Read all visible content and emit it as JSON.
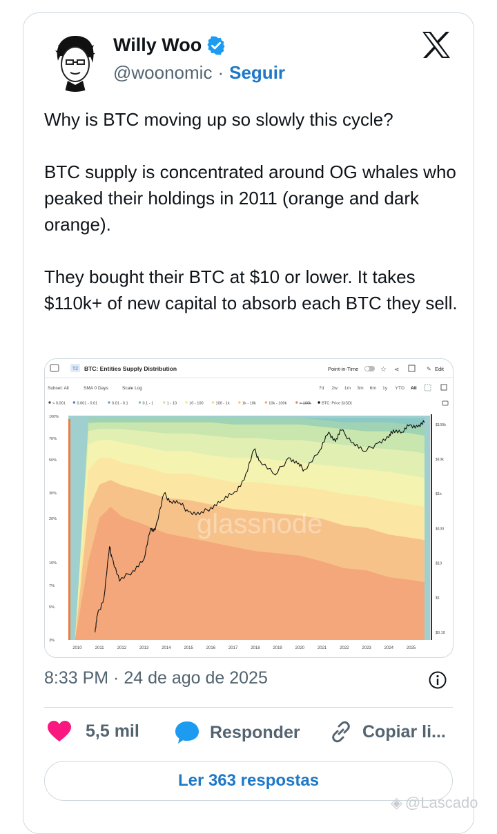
{
  "tweet": {
    "author_name": "Willy Woo",
    "handle": "@woonomic",
    "separator": "·",
    "follow_label": "Seguir",
    "paragraphs": [
      "Why is BTC moving up so slowly this cycle?",
      "BTC supply is concentrated around OG whales who peaked their holdings in 2011 (orange and dark orange).",
      "They bought their BTC at $10 or lower. It takes $110k+ of new capital to absorb each BTC they sell."
    ],
    "timestamp": "8:33 PM · 24 de ago de 2025",
    "likes": "5,5 mil",
    "reply_label": "Responder",
    "copy_label": "Copiar li...",
    "read_replies_label": "Ler 363 respostas",
    "watermark": "@Lascado",
    "colors": {
      "accent": "#1d78c8",
      "like": "#f91880",
      "muted": "#536471"
    }
  },
  "chart_embed": {
    "badge": "T2",
    "title": "BTC: Entities Supply Distribution",
    "point_in_time_label": "Point-in-Time",
    "edit_label": "Edit",
    "subset_label": "Subset: All",
    "sma_label": "SMA 0 Days",
    "scale_label": "Scale Log",
    "ranges": [
      "7d",
      "2w",
      "1m",
      "3m",
      "6m",
      "1y",
      "YTD",
      "All"
    ],
    "active_range": "All",
    "legend": [
      "< 0.001",
      "0.001 - 0.01",
      "0.01 - 0.1",
      "0.1 - 1",
      "1 - 10",
      "10 - 100",
      "100 - 1k",
      "1k - 10k",
      "10k - 100k",
      "> 100k",
      "BTC: Price [USD]"
    ],
    "watermark": "glassnode"
  },
  "chart_data": {
    "type": "area",
    "title": "BTC: Entities Supply Distribution",
    "x": [
      2009.9,
      2010.5,
      2011,
      2011.5,
      2012,
      2013,
      2014,
      2015,
      2016,
      2017,
      2018,
      2019,
      2020,
      2021,
      2022,
      2023,
      2024,
      2025,
      2025.6
    ],
    "xticks": [
      "2010",
      "2011",
      "2012",
      "2013",
      "2014",
      "2015",
      "2016",
      "2017",
      "2018",
      "2019",
      "2020",
      "2021",
      "2022",
      "2023",
      "2024",
      "2025"
    ],
    "yticks_left": [
      "100%",
      "70%",
      "50%",
      "30%",
      "20%",
      "10%",
      "7%",
      "5%",
      "3%"
    ],
    "yticks_right": [
      "$100k",
      "$10k",
      "$1k",
      "$100",
      "$10",
      "$1",
      "$0.10"
    ],
    "yscale": "log",
    "legend_placement": "top",
    "series": [
      {
        "name": "10k - 100k",
        "color": "#f3a77a",
        "values": [
          0,
          30,
          55,
          60,
          55,
          52,
          48,
          46,
          44,
          42,
          40,
          39,
          38,
          35,
          32,
          31,
          28,
          27,
          26
        ]
      },
      {
        "name": "1k - 10k",
        "color": "#f6c28a",
        "values": [
          0,
          20,
          15,
          12,
          14,
          15,
          16,
          17,
          17,
          17,
          18,
          18,
          18,
          19,
          19,
          19,
          19,
          19,
          19
        ]
      },
      {
        "name": "100 - 1k",
        "color": "#fbe7a3",
        "values": [
          0,
          15,
          12,
          10,
          10,
          11,
          11,
          12,
          12,
          12,
          13,
          13,
          13,
          13,
          14,
          14,
          15,
          15,
          15
        ]
      },
      {
        "name": "10 - 100",
        "color": "#f4f3b0",
        "values": [
          0,
          10,
          8,
          8,
          9,
          9,
          10,
          10,
          10,
          11,
          11,
          11,
          11,
          11,
          12,
          12,
          13,
          13,
          13
        ]
      },
      {
        "name": "1 - 10",
        "color": "#e2efb3",
        "values": [
          0,
          5,
          5,
          5,
          6,
          7,
          8,
          8,
          9,
          9,
          9,
          9,
          10,
          10,
          10,
          10,
          10,
          11,
          11
        ]
      },
      {
        "name": "0.1 - 1",
        "color": "#c8e6ad",
        "values": [
          0,
          3,
          3,
          3,
          3,
          4,
          5,
          5,
          6,
          6,
          6,
          7,
          7,
          7,
          7,
          7,
          8,
          8,
          8
        ]
      },
      {
        "name": "0.01 - 0.1",
        "color": "#9fd3b3",
        "values": [
          0,
          2,
          2,
          2,
          2,
          2,
          2,
          2,
          2,
          3,
          3,
          3,
          3,
          3,
          3,
          4,
          4,
          4,
          5
        ]
      },
      {
        "name": "0.001 - 0.01",
        "color": "#8cc8c6",
        "values": [
          0,
          0,
          0,
          0,
          0,
          0,
          0,
          0,
          0,
          0,
          0,
          0,
          0,
          1,
          2,
          2,
          2,
          3,
          3
        ]
      }
    ],
    "price_series": {
      "name": "BTC: Price [USD]",
      "x": [
        2010.8,
        2010.9,
        2011.2,
        2011.45,
        2011.55,
        2011.9,
        2012.5,
        2013.0,
        2013.3,
        2013.5,
        2013.9,
        2014.2,
        2014.6,
        2015.0,
        2015.5,
        2016.0,
        2016.5,
        2017.0,
        2017.5,
        2017.95,
        2018.2,
        2018.9,
        2019.5,
        2019.9,
        2020.2,
        2020.9,
        2021.3,
        2021.6,
        2021.85,
        2022.4,
        2022.9,
        2023.5,
        2024.0,
        2024.2,
        2024.6,
        2024.95,
        2025.3,
        2025.6
      ],
      "values": [
        0.1,
        0.3,
        1,
        30,
        15,
        3,
        6,
        13,
        100,
        90,
        1000,
        600,
        550,
        300,
        250,
        400,
        650,
        1000,
        2500,
        19000,
        9000,
        3500,
        11000,
        7200,
        5000,
        18000,
        60000,
        32000,
        68000,
        30000,
        16500,
        29000,
        42000,
        70000,
        60000,
        98000,
        85000,
        115000
      ]
    }
  }
}
